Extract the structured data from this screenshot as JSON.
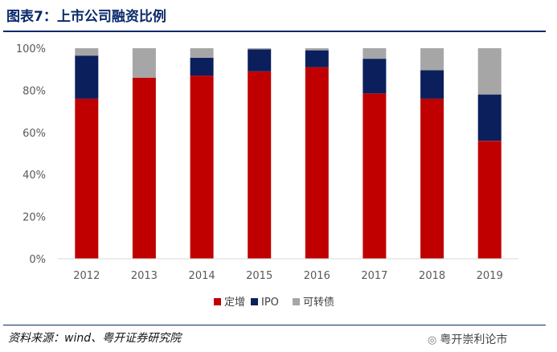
{
  "title": "图表7：上市公司融资比例",
  "source": "资料来源：wind、粤开证券研究院",
  "watermark": "粤开崇利论市",
  "watermark_icon": "wechat-icon",
  "colors": {
    "title": "#0b2a6b",
    "定增": "#c00000",
    "IPO": "#0b1f5c",
    "可转债": "#a6a6a6",
    "axis": "#d9d9d9",
    "tick_text": "#595959"
  },
  "chart_data": {
    "type": "bar",
    "stacked": true,
    "categories": [
      "2012",
      "2013",
      "2014",
      "2015",
      "2016",
      "2017",
      "2018",
      "2019"
    ],
    "series": [
      {
        "name": "定增",
        "values": [
          76,
          86,
          87,
          89,
          91,
          78.5,
          76,
          56
        ]
      },
      {
        "name": "IPO",
        "values": [
          20.5,
          0,
          8.5,
          10.5,
          8,
          16.5,
          13.5,
          22
        ]
      },
      {
        "name": "可转债",
        "values": [
          3.5,
          14,
          4.5,
          0.5,
          1,
          5,
          10.5,
          22
        ]
      }
    ],
    "ylim": [
      0,
      100
    ],
    "yticks": [
      "0%",
      "20%",
      "40%",
      "60%",
      "80%",
      "100%"
    ],
    "grid": false,
    "legend": "bottom"
  }
}
